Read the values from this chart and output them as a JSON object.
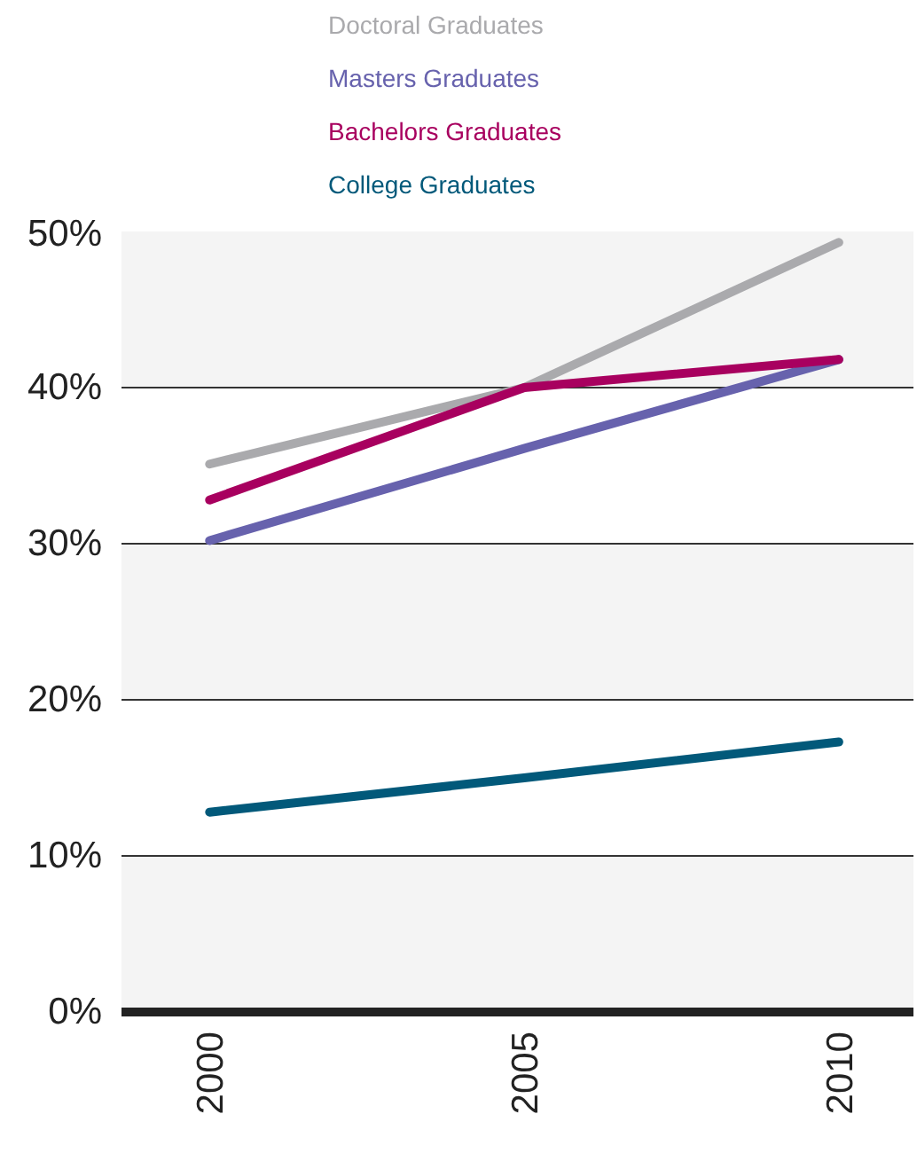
{
  "chart_data": {
    "type": "line",
    "x": [
      2000,
      2005,
      2010
    ],
    "series": [
      {
        "name": "Doctoral Graduates",
        "color": "#aaaaad",
        "values": [
          35.1,
          40.0,
          49.3
        ]
      },
      {
        "name": "Masters Graduates",
        "color": "#6762ad",
        "values": [
          30.2,
          36.1,
          41.8
        ]
      },
      {
        "name": "Bachelors Graduates",
        "color": "#a8005f",
        "values": [
          32.8,
          40.0,
          41.8
        ]
      },
      {
        "name": "College Graduates",
        "color": "#02597a",
        "values": [
          12.8,
          15.0,
          17.3
        ]
      }
    ],
    "xlim": [
      1998.6,
      2011.2
    ],
    "xticks": [
      2000,
      2005,
      2010
    ],
    "ylim": [
      0,
      50
    ],
    "yticks": [
      {
        "value": 0,
        "label": "0%"
      },
      {
        "value": 10,
        "label": "10%"
      },
      {
        "value": 20,
        "label": "20%"
      },
      {
        "value": 30,
        "label": "30%"
      },
      {
        "value": 40,
        "label": "40%"
      },
      {
        "value": 50,
        "label": "50%"
      }
    ],
    "grid": "y",
    "legend": "top left",
    "marker": "none",
    "line_style": "solid"
  }
}
